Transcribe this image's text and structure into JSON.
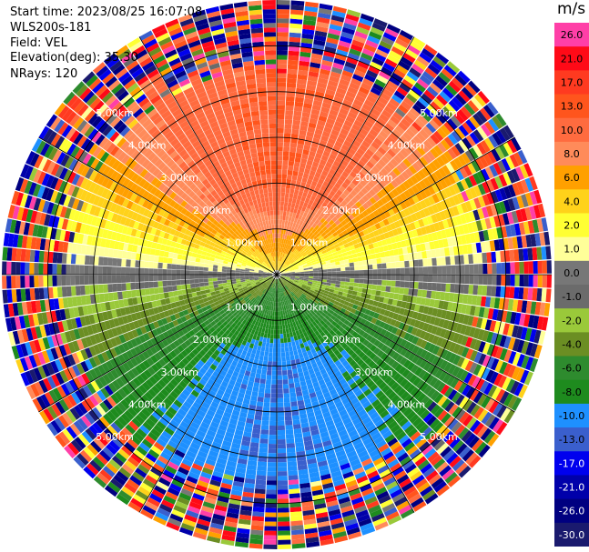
{
  "info": {
    "start_time": "Start time: 2023/08/25 16:07:08",
    "station": "WLS200s-181",
    "field": "Field: VEL",
    "elevation": "Elevation(deg): 35.30",
    "nrays": "NRays: 120"
  },
  "chart_data": {
    "type": "heatmap",
    "projection": "polar",
    "field": "VEL",
    "units": "m/s",
    "n_rays": 120,
    "range_rings_km": [
      1,
      2,
      3,
      4,
      5
    ],
    "ring_labels": [
      "1.00km",
      "2.00km",
      "3.00km",
      "4.00km",
      "5.00km"
    ],
    "max_range_km": 6.0,
    "spokes_deg": [
      0,
      30,
      60,
      90,
      120,
      150,
      180,
      210,
      240,
      270,
      300,
      330
    ],
    "colorbar": {
      "title": "m/s",
      "tick_labels": [
        "26.0",
        "21.0",
        "17.0",
        "13.0",
        "10.0",
        "8.0",
        "6.0",
        "4.0",
        "2.0",
        "1.0",
        "0.0",
        "-1.0",
        "-2.0",
        "-4.0",
        "-6.0",
        "-8.0",
        "-10.0",
        "-13.0",
        "-17.0",
        "-21.0",
        "-26.0",
        "-30.0"
      ],
      "colors": [
        "#ff3fa7",
        "#ff0a17",
        "#ff3a20",
        "#ff551d",
        "#ff6b3f",
        "#ff8b5a",
        "#ffa000",
        "#ffd21a",
        "#ffff33",
        "#ffff99",
        "#777777",
        "#6b6b6b",
        "#9ac93a",
        "#6b8e23",
        "#2e8b2e",
        "#1e8b1e",
        "#1e90ff",
        "#3a5fcd",
        "#0000ee",
        "#0000aa",
        "#000080",
        "#1a1a6e"
      ]
    },
    "velocity_pattern": {
      "north_max": 13.0,
      "south_min": -10.0,
      "valid_range_km": 4.3,
      "near_zero_band": "east-west"
    }
  }
}
